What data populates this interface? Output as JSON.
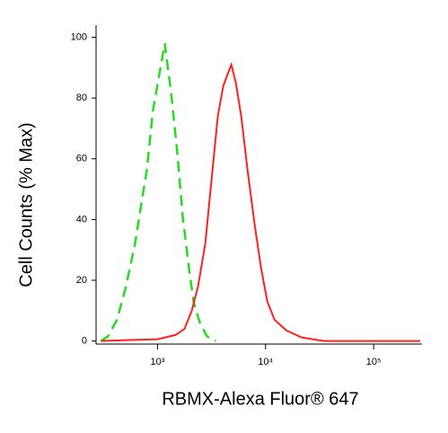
{
  "chart_data": {
    "type": "line",
    "x_label": "RBMX-Alexa Fluor® 647",
    "y_label": "Cell Counts (% Max)",
    "xscale": "log",
    "xlim": [
      270,
      280000
    ],
    "ylim": [
      -1,
      104
    ],
    "xticks": [
      {
        "value": 1000,
        "label": "10³"
      },
      {
        "value": 10000,
        "label": "10⁴"
      },
      {
        "value": 100000,
        "label": "10⁵"
      }
    ],
    "yticks": [
      0,
      20,
      40,
      60,
      80,
      100
    ],
    "series": [
      {
        "color": "#22dd22",
        "dash": true,
        "x": [
          299,
          348,
          422,
          511,
          619,
          722,
          794,
          908,
          1019,
          1166,
          1334,
          1525,
          1711,
          1957,
          2154,
          2465,
          2873,
          3481
        ],
        "values": [
          0,
          1.5,
          7,
          18,
          32,
          47,
          56,
          76,
          86,
          98,
          82,
          62,
          41,
          24,
          13,
          6,
          1.5,
          0
        ]
      },
      {
        "color": "#ff2020",
        "dash": false,
        "x": [
          299,
          511,
          1000,
          1468,
          1778,
          2074,
          2371,
          2766,
          3162,
          3615,
          4059,
          4467,
          4821,
          5309,
          5957,
          6813,
          7943,
          9085,
          10390,
          12115,
          15540,
          21544,
          34810,
          270000
        ],
        "values": [
          0,
          0.3,
          0.6,
          2,
          4,
          10,
          18,
          32,
          53,
          74,
          84,
          88,
          91,
          85,
          74,
          56,
          38,
          24,
          13,
          7,
          3.5,
          1.2,
          0,
          0
        ]
      }
    ]
  }
}
